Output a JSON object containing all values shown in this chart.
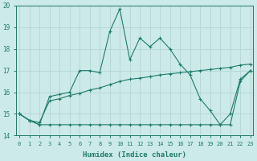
{
  "xlabel": "Humidex (Indice chaleur)",
  "x_values": [
    0,
    1,
    2,
    3,
    4,
    5,
    6,
    7,
    8,
    9,
    10,
    11,
    12,
    13,
    14,
    15,
    16,
    17,
    18,
    19,
    20,
    21,
    22,
    23
  ],
  "line1": [
    15.0,
    14.7,
    14.5,
    15.8,
    15.9,
    16.0,
    17.0,
    17.0,
    16.9,
    18.8,
    19.85,
    17.5,
    18.5,
    18.1,
    18.5,
    18.0,
    17.3,
    16.8,
    15.7,
    15.15,
    14.5,
    15.0,
    16.6,
    17.0
  ],
  "line2": [
    15.0,
    14.7,
    14.6,
    15.6,
    15.7,
    15.85,
    15.95,
    16.1,
    16.2,
    16.35,
    16.5,
    16.6,
    16.65,
    16.72,
    16.8,
    16.85,
    16.9,
    16.95,
    17.0,
    17.05,
    17.1,
    17.15,
    17.25,
    17.3
  ],
  "line3": [
    15.0,
    14.7,
    14.5,
    14.5,
    14.5,
    14.5,
    14.5,
    14.5,
    14.5,
    14.5,
    14.5,
    14.5,
    14.5,
    14.5,
    14.5,
    14.5,
    14.5,
    14.5,
    14.5,
    14.5,
    14.5,
    14.5,
    16.5,
    17.0
  ],
  "line_color": "#1e7b6b",
  "bg_color": "#cceae7",
  "grid_color": "#b8d8d5",
  "ylim": [
    14,
    20
  ],
  "xlim_min": -0.3,
  "xlim_max": 23.3,
  "yticks": [
    14,
    15,
    16,
    17,
    18,
    19,
    20
  ],
  "xticks": [
    0,
    1,
    2,
    3,
    4,
    5,
    6,
    7,
    8,
    9,
    10,
    11,
    12,
    13,
    14,
    15,
    16,
    17,
    18,
    19,
    20,
    21,
    22,
    23
  ]
}
